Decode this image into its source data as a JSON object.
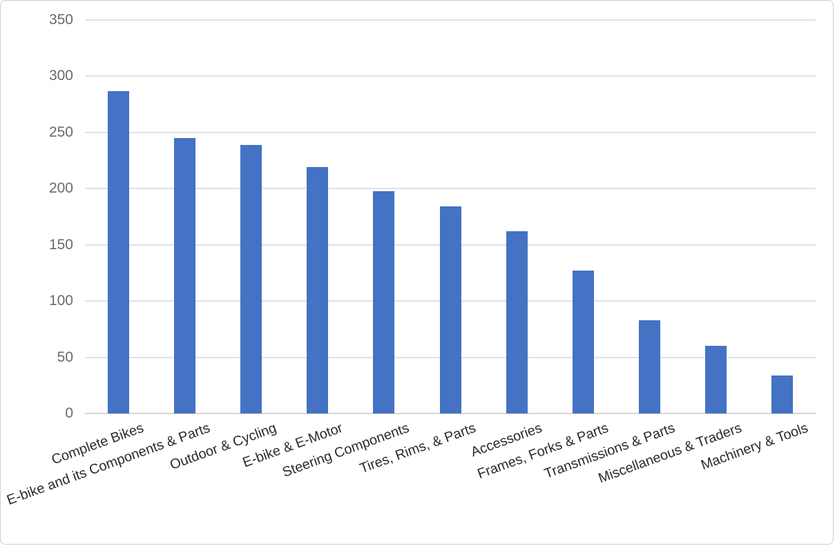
{
  "chart_data": {
    "type": "bar",
    "title": "",
    "xlabel": "",
    "ylabel": "",
    "categories": [
      "Complete Bikes",
      "E-bike and its Components & Parts",
      "Outdoor & Cycling",
      "E-bike & E-Motor",
      "Steering Components",
      "Tires, Rims, & Parts",
      "Accessories",
      "Frames, Forks & Parts",
      "Transmissions & Parts",
      "Miscellaneous & Traders",
      "Machinery & Tools"
    ],
    "values": [
      287,
      245,
      239,
      219,
      198,
      184,
      162,
      127,
      83,
      60,
      34
    ],
    "ylim": [
      0,
      350
    ],
    "yticks": [
      0,
      50,
      100,
      150,
      200,
      250,
      300,
      350
    ],
    "grid": true,
    "legend": false,
    "category_label_rotation_deg": -20,
    "colors": {
      "bar": "#4472C4",
      "gridline": "#e2e2e2",
      "axis_line": "#d6d6d6",
      "y_label": "#6a6a6a",
      "x_label": "#2b2b2b",
      "border": "#c9ced4"
    }
  }
}
